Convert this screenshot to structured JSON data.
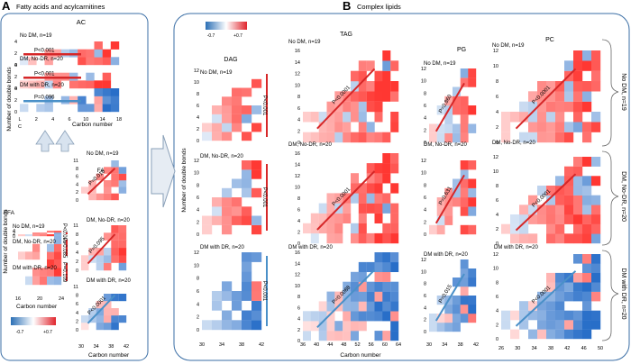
{
  "figure": {
    "panel_a": {
      "letter": "A",
      "title": "Fatty acids and acylcarnitines",
      "group_labels": [
        "No DM, n=19",
        "DM, No-DR, n=20",
        "DM with DR, n=20"
      ],
      "ylabel_ac": "Number of double bonds",
      "ylabel_ffa": "Number of double bonds",
      "xlabel": "Carbon number",
      "legend": {
        "min_label": "-0.7",
        "max_label": "+0.7"
      }
    },
    "panel_b": {
      "letter": "B",
      "title": "Complex lipids",
      "ylabel": "Number of double bonds",
      "xlabel": "Carbon number",
      "legend": {
        "min_label": "-0.7",
        "max_label": "+0.7"
      },
      "side_labels": [
        "No DM, n=19",
        "DM, No-DR, n=20",
        "DM with DR, n=20"
      ]
    }
  },
  "chart_data": [
    {
      "type": "heatmap",
      "id": "AC",
      "title": "AC",
      "panel": "A",
      "xlabel": "Carbon number",
      "ylabel": "Number of double bonds",
      "x_ticks": [
        "L",
        "2",
        "4",
        "6",
        "10",
        "14",
        "18"
      ],
      "extra_x_label": "C",
      "y_ticks": [
        "0",
        "2",
        "4"
      ],
      "rows": [
        {
          "group": "No DM, n=19",
          "p_value": "P<0.001",
          "trend_color": "#d62728"
        },
        {
          "group": "DM, No-DR, n=20",
          "p_value": "P<0.001",
          "trend_color": "#d62728"
        },
        {
          "group": "DM with DR, n=20",
          "p_value": "P=0.096",
          "trend_color": "#4a90c8"
        }
      ]
    },
    {
      "type": "heatmap",
      "id": "FFA",
      "title": "FFA",
      "panel": "A",
      "xlabel": "Carbon number",
      "ylabel": "Number of double bonds",
      "x_ticks": [
        "16",
        "20",
        "24"
      ],
      "y_ticks": [
        "0",
        "2",
        "4"
      ],
      "rows": [
        {
          "group": "No DM, n=19",
          "p_value": "P<0.001",
          "trend_color": "#d62728"
        },
        {
          "group": "DM, No-DR, n=20",
          "p_value": "P=0.085",
          "trend_color": "#d62728"
        },
        {
          "group": "DM with DR, n=20",
          "p_value": "P=0.109",
          "trend_color": "#d62728"
        }
      ]
    },
    {
      "type": "heatmap",
      "id": "FAHFA",
      "title": "FAHFA",
      "panel": "A",
      "xlabel": "Carbon number",
      "x_ticks": [
        "30",
        "34",
        "38",
        "42"
      ],
      "y_ticks": [
        "0",
        "2",
        "4",
        "6",
        "8",
        "11"
      ],
      "rows": [
        {
          "group": "No DM, n=19",
          "p_value": "P=0.016",
          "trend_color": "#d62728"
        },
        {
          "group": "DM, No-DR, n=20",
          "p_value": "P=0.095",
          "trend_color": "#d62728"
        },
        {
          "group": "DM with DR, n=20",
          "p_value": "P<0.0001",
          "trend_color": "#4a90c8"
        }
      ]
    },
    {
      "type": "heatmap",
      "id": "DAG",
      "title": "DAG",
      "panel": "B",
      "x_ticks": [
        "30",
        "34",
        "38",
        "42"
      ],
      "y_ticks": [
        "0",
        "2",
        "4",
        "6",
        "8",
        "10",
        "12"
      ],
      "rows": [
        {
          "group": "No DM, n=19",
          "p_value": "P<0.001",
          "trend_color": "#d62728"
        },
        {
          "group": "DM, No-DR, n=20",
          "p_value": "P<0.001",
          "trend_color": "#d62728"
        },
        {
          "group": "DM with DR, n=20",
          "p_value": "P<0.001",
          "trend_color": "#4a90c8"
        }
      ]
    },
    {
      "type": "heatmap",
      "id": "TAG",
      "title": "TAG",
      "panel": "B",
      "x_ticks": [
        "36",
        "40",
        "44",
        "48",
        "52",
        "56",
        "60",
        "64"
      ],
      "y_ticks": [
        "0",
        "2",
        "4",
        "6",
        "8",
        "10",
        "12",
        "14",
        "16"
      ],
      "rows": [
        {
          "group": "No DM, n=19",
          "p_value": "P<0.0001",
          "trend_color": "#d62728"
        },
        {
          "group": "DM, No-DR, n=20",
          "p_value": "P<0.0001",
          "trend_color": "#d62728"
        },
        {
          "group": "DM with DR, n=20",
          "p_value": "P=0.0088",
          "trend_color": "#4a90c8"
        }
      ]
    },
    {
      "type": "heatmap",
      "id": "PG",
      "title": "PG",
      "panel": "B",
      "x_ticks": [
        "30",
        "34",
        "38",
        "42"
      ],
      "y_ticks": [
        "0",
        "2",
        "4",
        "6",
        "8",
        "10",
        "12"
      ],
      "rows": [
        {
          "group": "No DM, n=19",
          "p_value": "P=0.860",
          "trend_color": "#d62728"
        },
        {
          "group": "DM, No-DR, n=20",
          "p_value": "P=0.631",
          "trend_color": "#d62728"
        },
        {
          "group": "DM with DR, n=20",
          "p_value": "P=0.015",
          "trend_color": "#4a90c8"
        }
      ]
    },
    {
      "type": "heatmap",
      "id": "PC",
      "title": "PC",
      "panel": "B",
      "x_ticks": [
        "26",
        "30",
        "34",
        "38",
        "42",
        "46",
        "50"
      ],
      "y_ticks": [
        "0",
        "2",
        "4",
        "6",
        "8",
        "10",
        "12"
      ],
      "rows": [
        {
          "group": "No DM, n=19",
          "p_value": "P<0.0001",
          "trend_color": "#d62728"
        },
        {
          "group": "DM, No-DR, n=20",
          "p_value": "P<0.0001",
          "trend_color": "#d62728"
        },
        {
          "group": "DM with DR, n=20",
          "p_value": "P<0.0001",
          "trend_color": "#4a90c8"
        }
      ]
    }
  ]
}
